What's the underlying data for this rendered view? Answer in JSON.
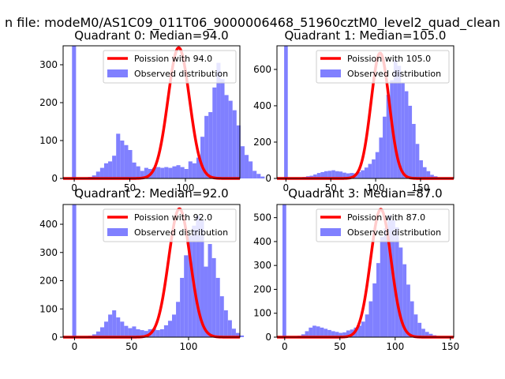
{
  "figure": {
    "suptitle": "n file: modeM0/AS1C09_011T06_9000006468_51960cztM0_level2_quad_clean"
  },
  "colors": {
    "fit_line": "#ff0000",
    "histogram": "#8080ff",
    "axes": "#000000",
    "legend_border": "#cccccc"
  },
  "legend_labels": {
    "observed": "Observed distribution"
  },
  "chart_data": [
    {
      "type": "bar",
      "title": "Quadrant 0: Median=94.0",
      "median": 94.0,
      "fit_label": "Poission with 94.0",
      "xlim": [
        -10,
        149
      ],
      "ylim": [
        0,
        350
      ],
      "xticks": [
        0,
        50,
        100
      ],
      "yticks": [
        0,
        100,
        200,
        300
      ],
      "bins": {
        "start": -2,
        "width": 3.61
      },
      "counts": [
        360,
        0,
        0,
        2,
        4,
        8,
        18,
        28,
        40,
        45,
        60,
        118,
        100,
        88,
        75,
        42,
        32,
        20,
        28,
        25,
        28,
        30,
        28,
        30,
        28,
        32,
        35,
        30,
        25,
        45,
        40,
        55,
        110,
        165,
        175,
        240,
        305,
        262,
        220,
        205,
        180,
        140,
        85,
        62,
        45,
        20,
        12,
        5
      ],
      "fit_peak": 345,
      "fit_sigma": 9.7
    },
    {
      "type": "bar",
      "title": "Quadrant 1: Median=105.0",
      "median": 105.0,
      "fit_label": "Poission with 105.0",
      "xlim": [
        -10,
        187
      ],
      "ylim": [
        0,
        730
      ],
      "xticks": [
        0,
        50,
        100,
        150
      ],
      "yticks": [
        0,
        200,
        400,
        600
      ],
      "bins": {
        "start": -2,
        "width": 4.07
      },
      "counts": [
        740,
        0,
        0,
        0,
        3,
        8,
        12,
        15,
        22,
        30,
        35,
        40,
        42,
        45,
        40,
        38,
        32,
        28,
        30,
        28,
        35,
        45,
        60,
        80,
        105,
        145,
        225,
        340,
        460,
        540,
        650,
        620,
        525,
        480,
        400,
        300,
        190,
        100,
        62,
        40,
        20,
        12,
        6,
        4
      ],
      "fit_peak": 690,
      "fit_sigma": 10.2
    },
    {
      "type": "bar",
      "title": "Quadrant 2: Median=92.0",
      "median": 92.0,
      "fit_label": "Poission with 92.0",
      "xlim": [
        -10,
        145
      ],
      "ylim": [
        0,
        470
      ],
      "xticks": [
        0,
        50,
        100
      ],
      "yticks": [
        0,
        100,
        200,
        300,
        400
      ],
      "bins": {
        "start": -2,
        "width": 3.5
      },
      "counts": [
        480,
        0,
        0,
        2,
        5,
        10,
        20,
        35,
        55,
        80,
        95,
        70,
        55,
        40,
        32,
        38,
        28,
        25,
        22,
        28,
        30,
        25,
        28,
        42,
        58,
        80,
        125,
        210,
        290,
        360,
        395,
        430,
        415,
        250,
        330,
        280,
        210,
        145,
        95,
        60,
        30,
        15,
        6
      ],
      "fit_peak": 455,
      "fit_sigma": 9.5
    },
    {
      "type": "bar",
      "title": "Quadrant 3: Median=87.0",
      "median": 87.0,
      "fit_label": "Poission with 87.0",
      "xlim": [
        -7,
        153
      ],
      "ylim": [
        0,
        555
      ],
      "xticks": [
        0,
        50,
        100,
        150
      ],
      "yticks": [
        0,
        100,
        200,
        300,
        400,
        500
      ],
      "bins": {
        "start": -2,
        "width": 3.4
      },
      "counts": [
        560,
        0,
        0,
        2,
        6,
        12,
        25,
        40,
        48,
        45,
        40,
        35,
        30,
        25,
        22,
        18,
        20,
        28,
        32,
        40,
        48,
        65,
        95,
        150,
        225,
        310,
        420,
        455,
        510,
        490,
        460,
        375,
        305,
        220,
        150,
        95,
        60,
        35,
        22,
        14,
        8,
        5,
        3,
        2
      ],
      "fit_peak": 535,
      "fit_sigma": 9.3
    }
  ]
}
